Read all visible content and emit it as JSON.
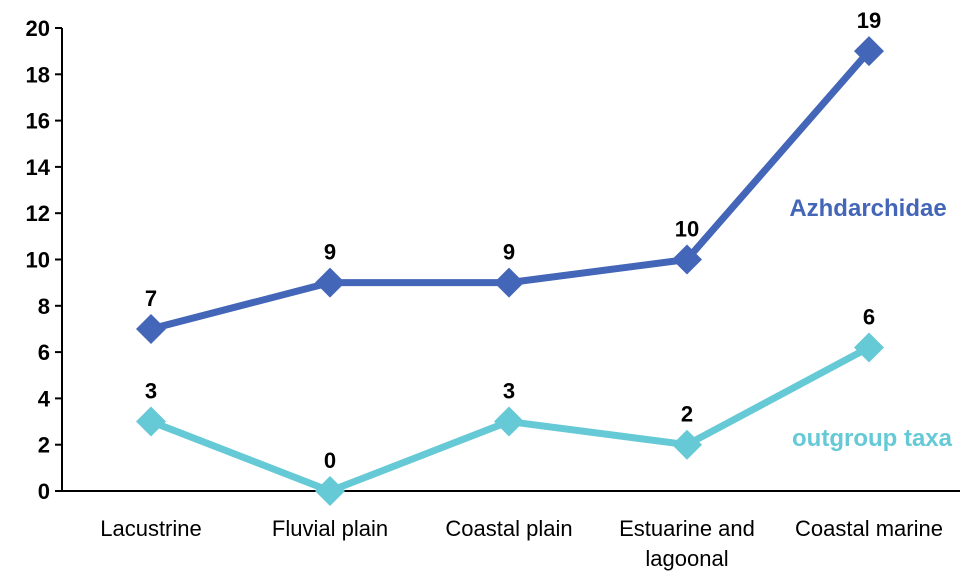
{
  "chart_data": {
    "type": "line",
    "title": "",
    "xlabel": "",
    "ylabel": "",
    "categories": [
      [
        "Lacustrine"
      ],
      [
        "Fluvial plain"
      ],
      [
        "Coastal plain"
      ],
      [
        "Estuarine and",
        "lagoonal"
      ],
      [
        "Coastal marine"
      ]
    ],
    "yticks": [
      "0",
      "2",
      "4",
      "6",
      "8",
      "10",
      "12",
      "14",
      "16",
      "18",
      "20"
    ],
    "ylim": [
      0,
      20
    ],
    "grid": false,
    "legend": "inline-right",
    "series": [
      {
        "name": "Azhdarchidae",
        "values": [
          7,
          9,
          9,
          10,
          19
        ],
        "labels": [
          "7",
          "9",
          "9",
          "10",
          "19"
        ],
        "color": "#4466b8"
      },
      {
        "name": "outgroup taxa",
        "values": [
          3,
          0,
          3,
          2,
          6.2
        ],
        "labels": [
          "3",
          "0",
          "3",
          "2",
          "6"
        ],
        "color": "#66c9d6"
      }
    ]
  }
}
